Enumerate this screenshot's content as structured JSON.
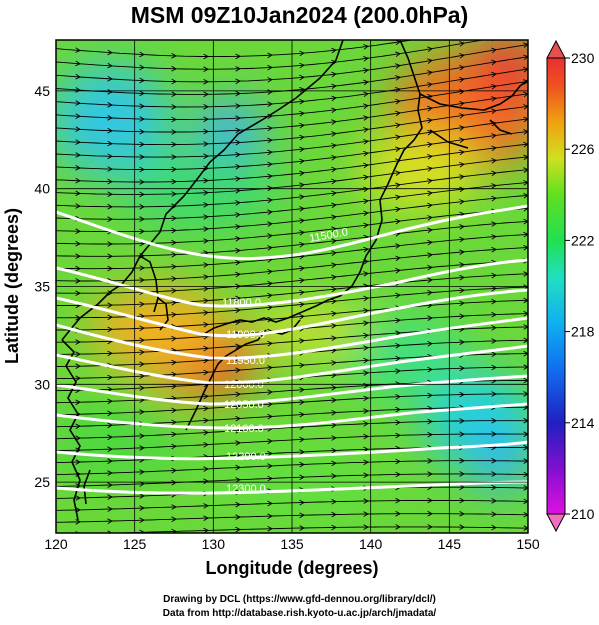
{
  "title": "MSM 09Z10Jan2024 (200.0hPa)",
  "axes": {
    "xlabel": "Longitude (degrees)",
    "ylabel": "Latitude  (degrees)",
    "xticks": [
      "120",
      "125",
      "130",
      "135",
      "140",
      "145",
      "150"
    ],
    "yticks": [
      "25",
      "30",
      "35",
      "40",
      "45"
    ],
    "xlim": [
      120,
      150
    ],
    "ylim": [
      22.4,
      47.6
    ]
  },
  "colorbar": {
    "ticks": [
      "210",
      "214",
      "218",
      "222",
      "226",
      "230"
    ],
    "range": [
      210,
      230
    ],
    "colors": [
      "#e010e0",
      "#3020d0",
      "#1080f0",
      "#20d0e0",
      "#20e060",
      "#50e020",
      "#d0e020",
      "#f0a010",
      "#f05020",
      "#e83030"
    ]
  },
  "chart_data": {
    "type": "heatmap",
    "variable_range": [
      210,
      230
    ],
    "contour_labels": [
      "11500.0",
      "11800.0",
      "11900.0",
      "11950.0",
      "12000.0",
      "12050.0",
      "12100.0",
      "12200.0",
      "12300.0"
    ]
  },
  "credits": {
    "line1": "Drawing by DCL (https://www.gfd-dennou.org/library/dcl/)",
    "line2": "Data from http://database.rish.kyoto-u.ac.jp/arch/jmadata/"
  }
}
